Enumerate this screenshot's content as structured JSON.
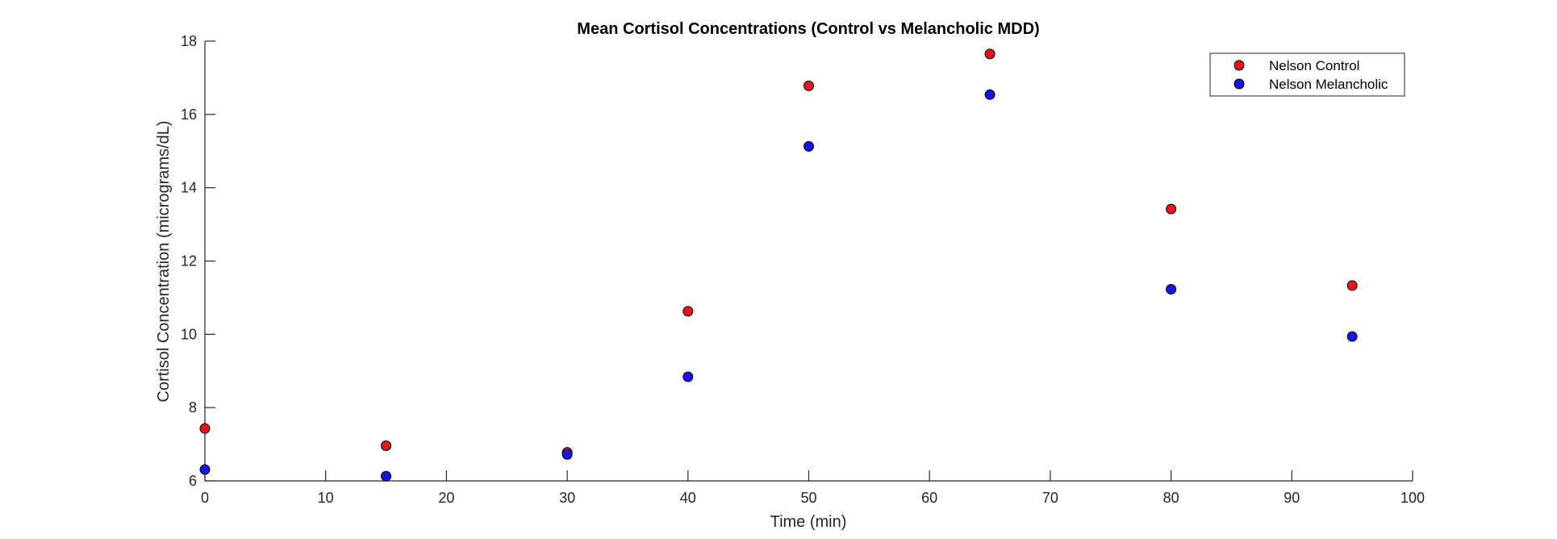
{
  "chart_data": {
    "type": "scatter",
    "title": "Mean Cortisol Concentrations (Control vs Melancholic MDD)",
    "xlabel": "Time (min)",
    "ylabel": "Cortisol Concentration (micrograms/dL)",
    "xlim": [
      0,
      100
    ],
    "ylim": [
      6,
      18
    ],
    "xticks": [
      0,
      10,
      20,
      30,
      40,
      50,
      60,
      70,
      80,
      90,
      100
    ],
    "yticks": [
      6,
      8,
      10,
      12,
      14,
      16,
      18
    ],
    "grid": false,
    "legend_position": "top-right",
    "series": [
      {
        "name": "Nelson Control",
        "color": "#e8141b",
        "x": [
          0,
          15,
          30,
          40,
          50,
          65,
          80,
          95
        ],
        "y": [
          7.43,
          6.96,
          6.78,
          10.63,
          16.78,
          17.65,
          13.42,
          11.33
        ]
      },
      {
        "name": "Nelson Melancholic",
        "color": "#1414e8",
        "x": [
          0,
          15,
          30,
          40,
          50,
          65,
          80,
          95
        ],
        "y": [
          6.31,
          6.13,
          6.72,
          8.84,
          15.13,
          16.54,
          11.23,
          9.94
        ]
      }
    ]
  }
}
